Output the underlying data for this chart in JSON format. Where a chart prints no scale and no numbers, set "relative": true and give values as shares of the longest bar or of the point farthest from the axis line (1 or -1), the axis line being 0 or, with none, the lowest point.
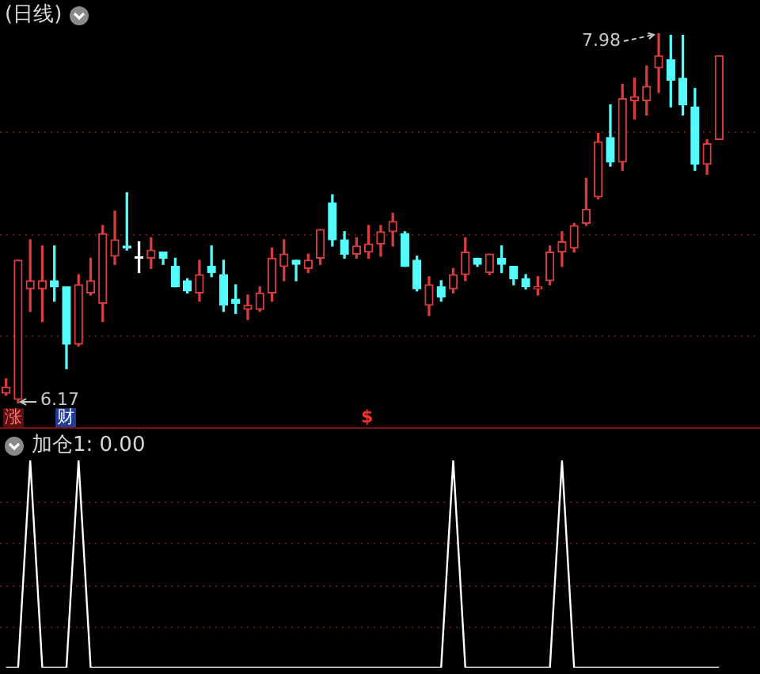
{
  "chart_data": [
    {
      "type": "candlestick",
      "title": "(日线)",
      "categories": [
        null,
        null,
        null,
        null,
        null,
        null,
        null,
        null,
        null,
        null,
        null,
        null,
        null,
        null,
        null,
        null,
        null,
        null,
        null,
        null,
        null,
        null,
        null,
        null,
        null,
        null,
        null,
        null,
        null,
        null,
        null,
        null,
        null,
        null,
        null,
        null,
        null,
        null,
        null,
        null,
        null,
        null,
        null,
        null,
        null,
        null,
        null,
        null,
        null,
        null,
        null,
        null,
        null,
        null,
        null,
        null,
        null,
        null,
        null,
        null
      ],
      "ohlc": [
        [
          6.22,
          6.29,
          6.21,
          6.25
        ],
        [
          6.19,
          6.87,
          6.17,
          6.87
        ],
        [
          6.73,
          6.97,
          6.62,
          6.77
        ],
        [
          6.73,
          6.94,
          6.57,
          6.77
        ],
        [
          6.77,
          6.94,
          6.67,
          6.74
        ],
        [
          6.74,
          6.74,
          6.34,
          6.46
        ],
        [
          6.46,
          6.8,
          6.45,
          6.75
        ],
        [
          6.71,
          6.88,
          6.7,
          6.77
        ],
        [
          6.66,
          7.04,
          6.57,
          7.0
        ],
        [
          6.89,
          7.11,
          6.85,
          6.97
        ],
        [
          6.94,
          7.2,
          6.92,
          6.93
        ],
        [
          6.88,
          6.96,
          6.81,
          6.88
        ],
        [
          6.88,
          6.98,
          6.83,
          6.92
        ],
        [
          6.91,
          6.91,
          6.85,
          6.88
        ],
        [
          6.84,
          6.88,
          6.74,
          6.74
        ],
        [
          6.77,
          6.78,
          6.71,
          6.72
        ],
        [
          6.71,
          6.87,
          6.67,
          6.8
        ],
        [
          6.84,
          6.94,
          6.79,
          6.81
        ],
        [
          6.8,
          6.87,
          6.62,
          6.65
        ],
        [
          6.68,
          6.75,
          6.61,
          6.66
        ],
        [
          6.63,
          6.7,
          6.58,
          6.65
        ],
        [
          6.63,
          6.74,
          6.62,
          6.71
        ],
        [
          6.71,
          6.93,
          6.67,
          6.88
        ],
        [
          6.84,
          6.97,
          6.77,
          6.9
        ],
        [
          6.87,
          6.87,
          6.77,
          6.85
        ],
        [
          6.83,
          6.9,
          6.81,
          6.87
        ],
        [
          6.88,
          7.02,
          6.85,
          7.02
        ],
        [
          7.15,
          7.19,
          6.94,
          6.97
        ],
        [
          6.97,
          7.01,
          6.88,
          6.9
        ],
        [
          6.9,
          6.98,
          6.88,
          6.94
        ],
        [
          6.91,
          7.04,
          6.88,
          6.95
        ],
        [
          6.95,
          7.04,
          6.89,
          7.01
        ],
        [
          7.01,
          7.1,
          6.94,
          7.06
        ],
        [
          7.0,
          7.01,
          6.84,
          6.84
        ],
        [
          6.87,
          6.89,
          6.72,
          6.73
        ],
        [
          6.65,
          6.79,
          6.6,
          6.75
        ],
        [
          6.74,
          6.77,
          6.67,
          6.69
        ],
        [
          6.73,
          6.83,
          6.71,
          6.8
        ],
        [
          6.8,
          6.98,
          6.77,
          6.91
        ],
        [
          6.88,
          6.88,
          6.84,
          6.85
        ],
        [
          6.81,
          6.9,
          6.8,
          6.9
        ],
        [
          6.88,
          6.94,
          6.81,
          6.85
        ],
        [
          6.84,
          6.84,
          6.75,
          6.78
        ],
        [
          6.78,
          6.8,
          6.73,
          6.74
        ],
        [
          6.73,
          6.79,
          6.7,
          6.74
        ],
        [
          6.77,
          6.94,
          6.75,
          6.91
        ],
        [
          6.91,
          7.01,
          6.84,
          6.96
        ],
        [
          6.93,
          7.05,
          6.91,
          7.04
        ],
        [
          7.05,
          7.27,
          7.04,
          7.12
        ],
        [
          7.18,
          7.49,
          7.17,
          7.45
        ],
        [
          7.47,
          7.63,
          7.33,
          7.35
        ],
        [
          7.35,
          7.73,
          7.31,
          7.66
        ],
        [
          7.65,
          7.76,
          7.56,
          7.67
        ],
        [
          7.65,
          7.82,
          7.58,
          7.72
        ],
        [
          7.81,
          7.98,
          7.69,
          7.87
        ],
        [
          7.85,
          7.97,
          7.62,
          7.75
        ],
        [
          7.76,
          7.97,
          7.58,
          7.63
        ],
        [
          7.62,
          7.71,
          7.31,
          7.34
        ],
        [
          7.34,
          7.46,
          7.29,
          7.44
        ],
        [
          7.46,
          7.87,
          7.46,
          7.87
        ]
      ],
      "colors": [
        "#d83c3c",
        "#d83c3c",
        "#d83c3c",
        "#d83c3c",
        "#54fcfc",
        "#54fcfc",
        "#d83c3c",
        "#d83c3c",
        "#d83c3c",
        "#d83c3c",
        "#54fcfc",
        "#ffffff",
        "#d83c3c",
        "#54fcfc",
        "#54fcfc",
        "#54fcfc",
        "#d83c3c",
        "#54fcfc",
        "#54fcfc",
        "#54fcfc",
        "#d83c3c",
        "#d83c3c",
        "#d83c3c",
        "#d83c3c",
        "#54fcfc",
        "#d83c3c",
        "#d83c3c",
        "#54fcfc",
        "#54fcfc",
        "#d83c3c",
        "#d83c3c",
        "#d83c3c",
        "#d83c3c",
        "#54fcfc",
        "#54fcfc",
        "#d83c3c",
        "#54fcfc",
        "#d83c3c",
        "#d83c3c",
        "#54fcfc",
        "#d83c3c",
        "#54fcfc",
        "#54fcfc",
        "#54fcfc",
        "#d83c3c",
        "#d83c3c",
        "#d83c3c",
        "#d83c3c",
        "#d83c3c",
        "#d83c3c",
        "#54fcfc",
        "#d83c3c",
        "#d83c3c",
        "#d83c3c",
        "#d83c3c",
        "#54fcfc",
        "#54fcfc",
        "#54fcfc",
        "#d83c3c",
        "#d83c3c"
      ],
      "yticks": [
        {
          "value": 6.5,
          "label": null
        },
        {
          "value": 7,
          "label": null
        },
        {
          "value": 7.5,
          "label": null
        }
      ],
      "annotations": [
        "7.98",
        "6.17",
        "涨",
        "财",
        "$"
      ],
      "grid": "y",
      "tick_labels": false
    },
    {
      "type": "line",
      "title": "加仓1: 0.00",
      "categories": [
        null,
        null,
        null,
        null,
        null,
        null,
        null,
        null,
        null,
        null,
        null,
        null,
        null,
        null,
        null,
        null,
        null,
        null,
        null,
        null,
        null,
        null,
        null,
        null,
        null,
        null,
        null,
        null,
        null,
        null,
        null,
        null,
        null,
        null,
        null,
        null,
        null,
        null,
        null,
        null,
        null,
        null,
        null,
        null,
        null,
        null,
        null,
        null,
        null,
        null,
        null,
        null,
        null,
        null,
        null,
        null,
        null,
        null,
        null,
        null
      ],
      "values": [
        0,
        0,
        1,
        0,
        0,
        0,
        1,
        0,
        0,
        0,
        0,
        0,
        0,
        0,
        0,
        0,
        0,
        0,
        0,
        0,
        0,
        0,
        0,
        0,
        0,
        0,
        0,
        0,
        0,
        0,
        0,
        0,
        0,
        0,
        0,
        0,
        0,
        1,
        0,
        0,
        0,
        0,
        0,
        0,
        0,
        0,
        1,
        0,
        0,
        0,
        0,
        0,
        0,
        0,
        0,
        0,
        0,
        0,
        0,
        0
      ],
      "color": "#ffffff",
      "relative": true,
      "ref_lines": [
        {
          "axis": "y",
          "value": 0.2,
          "color": "#6a1414",
          "line_style": "dotted"
        },
        {
          "axis": "y",
          "value": 0.4,
          "color": "#6a1414",
          "line_style": "dotted"
        },
        {
          "axis": "y",
          "value": 0.6,
          "color": "#6a1414",
          "line_style": "dotted"
        },
        {
          "axis": "y",
          "value": 0.8,
          "color": "#6a1414",
          "line_style": "dotted"
        }
      ],
      "tick_labels": false,
      "marker": "none"
    }
  ]
}
